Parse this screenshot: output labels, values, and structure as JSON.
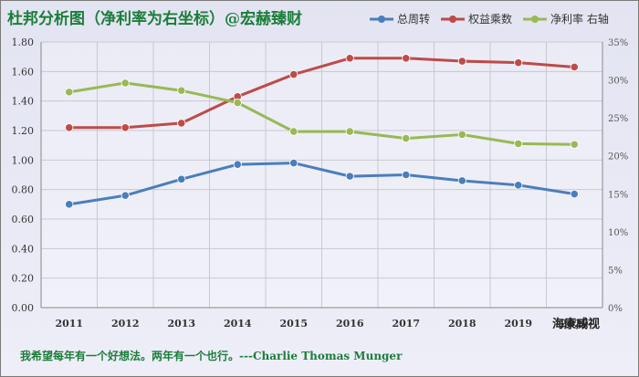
{
  "title": "杜邦分析图（净利率为右坐标）@宏赫臻财",
  "quote": "我希望每年有一个好想法。两年有一个也行。---Charlie Thomas  Munger",
  "watermark": "海康威视",
  "chart_data": {
    "type": "line",
    "title": "杜邦分析图（净利率为右坐标）@宏赫臻财",
    "categories": [
      "2011",
      "2012",
      "2013",
      "2014",
      "2015",
      "2016",
      "2017",
      "2018",
      "2019",
      "2020"
    ],
    "y_left": {
      "range": [
        0,
        1.8
      ],
      "ticks": [
        "0.00",
        "0.20",
        "0.40",
        "0.60",
        "0.80",
        "1.00",
        "1.20",
        "1.40",
        "1.60",
        "1.80"
      ]
    },
    "y_right": {
      "range": [
        0,
        35
      ],
      "ticks": [
        "0%",
        "5%",
        "10%",
        "15%",
        "20%",
        "25%",
        "30%",
        "35%"
      ]
    },
    "grid": true,
    "legend_position": "top-right",
    "series": [
      {
        "name": "总周转",
        "axis": "left",
        "color": "#4a7ebb",
        "values": [
          0.7,
          0.76,
          0.87,
          0.97,
          0.98,
          0.89,
          0.9,
          0.86,
          0.83,
          0.77
        ]
      },
      {
        "name": "权益乘数",
        "axis": "left",
        "color": "#be4b48",
        "values": [
          1.22,
          1.22,
          1.25,
          1.43,
          1.58,
          1.69,
          1.69,
          1.67,
          1.66,
          1.63
        ]
      },
      {
        "name": "净利率 右轴",
        "axis": "right",
        "color": "#98b954",
        "values": [
          28.4,
          29.6,
          28.6,
          27.0,
          23.2,
          23.2,
          22.3,
          22.8,
          21.6,
          21.5
        ]
      }
    ]
  }
}
